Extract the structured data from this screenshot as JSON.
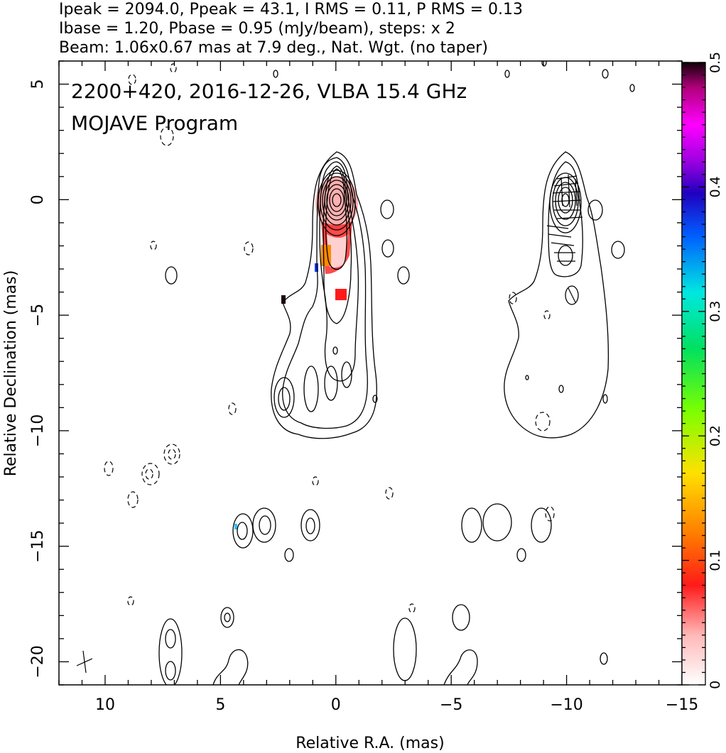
{
  "header": {
    "line1": "Ipeak = 2094.0, Ppeak = 43.1, I RMS = 0.11, P RMS = 0.13",
    "line2": "Ibase = 1.20, Pbase = 0.95 (mJy/beam), steps: x 2",
    "line3": "Beam: 1.06x0.67 mas at 7.9 deg., Nat. Wgt. (no taper)"
  },
  "chart_data": {
    "type": "contour",
    "title": "2200+420, 2016-12-26, VLBA 15.4 GHz",
    "subtitle": "MOJAVE Program",
    "xlabel": "Relative R.A. (mas)",
    "ylabel": "Relative Declination (mas)",
    "xlim": [
      12,
      -15
    ],
    "ylim": [
      -21,
      6
    ],
    "x_ticks": [
      10,
      5,
      0,
      -5,
      -10,
      -15
    ],
    "y_ticks": [
      5,
      0,
      -5,
      -10,
      -15,
      -20
    ],
    "x_tick_labels": [
      "10",
      "5",
      "0",
      "−5",
      "−10",
      "−15"
    ],
    "y_tick_labels": [
      "5",
      "0",
      "−5",
      "−10",
      "−15",
      "−20"
    ],
    "colorbar": {
      "range": [
        0,
        0.5
      ],
      "ticks": [
        0,
        0.1,
        0.2,
        0.3,
        0.4,
        0.5
      ],
      "tick_labels": [
        "0",
        "0.1",
        "0.2",
        "0.3",
        "0.4",
        "0.5"
      ]
    },
    "core": {
      "x": 0,
      "y": 0
    },
    "panels": [
      {
        "name": "total intensity with fractional polarization color",
        "x_offset": 0
      },
      {
        "name": "total intensity with polarization vectors",
        "x_offset": -10
      }
    ],
    "beam": {
      "x": 11,
      "y": -20,
      "major": 1.06,
      "minor": 0.67,
      "pa": 7.9
    }
  }
}
